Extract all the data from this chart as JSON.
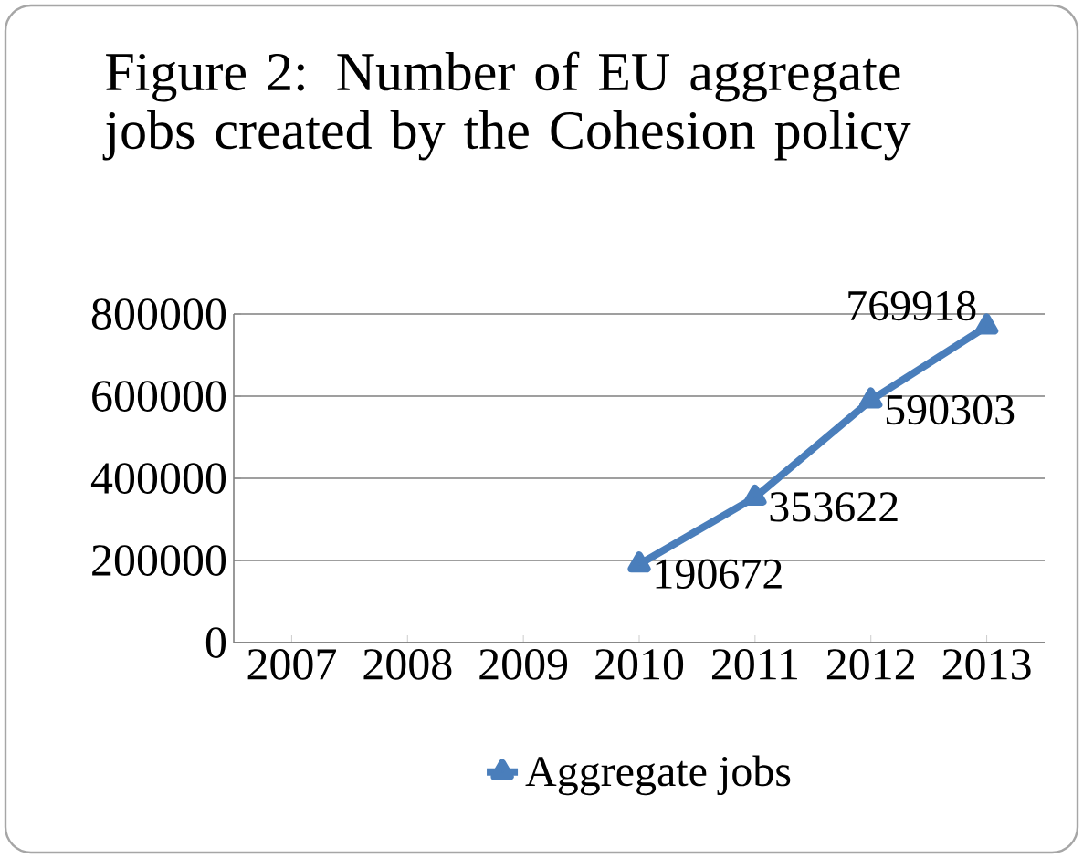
{
  "chart_data": {
    "type": "line",
    "title": "Figure 2: Number of EU aggregate jobs created by the Cohesion policy",
    "categories": [
      "2007",
      "2008",
      "2009",
      "2010",
      "2011",
      "2012",
      "2013"
    ],
    "series": [
      {
        "name": "Aggregate jobs",
        "color": "#4a7ebb",
        "values": [
          null,
          null,
          null,
          190672,
          353622,
          590303,
          769918
        ]
      }
    ],
    "ylim": [
      0,
      800000
    ],
    "yticks": [
      0,
      200000,
      400000,
      600000,
      800000
    ],
    "grid": "y",
    "legend": "bottom",
    "marker": "triangle",
    "line_style": "solid",
    "data_labels": true
  }
}
